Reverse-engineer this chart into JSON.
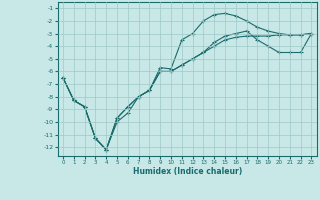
{
  "title": "",
  "xlabel": "Humidex (Indice chaleur)",
  "ylabel": "",
  "bg_color": "#c8e8e8",
  "grid_color": "#a0c8c8",
  "line_color": "#1a6b6b",
  "xlim": [
    -0.5,
    23.5
  ],
  "ylim": [
    -12.7,
    -0.5
  ],
  "xticks": [
    0,
    1,
    2,
    3,
    4,
    5,
    6,
    7,
    8,
    9,
    10,
    11,
    12,
    13,
    14,
    15,
    16,
    17,
    18,
    19,
    20,
    21,
    22,
    23
  ],
  "yticks": [
    -1,
    -2,
    -3,
    -4,
    -5,
    -6,
    -7,
    -8,
    -9,
    -10,
    -11,
    -12
  ],
  "series": [
    {
      "x": [
        0,
        1,
        2,
        3,
        4,
        5,
        6,
        7,
        8,
        9,
        10,
        11,
        12,
        13,
        14,
        15,
        16,
        17,
        18,
        19,
        20,
        21,
        22,
        23
      ],
      "y": [
        -6.5,
        -8.3,
        -8.8,
        -11.3,
        -12.2,
        -10.0,
        -9.3,
        -8.0,
        -7.5,
        -5.7,
        -5.8,
        -3.5,
        -3.0,
        -2.0,
        -1.5,
        -1.4,
        -1.6,
        -2.0,
        -2.5,
        -2.8,
        -3.0,
        -3.1,
        -3.1,
        -3.0
      ]
    },
    {
      "x": [
        0,
        1,
        2,
        3,
        4,
        5,
        6,
        7,
        8,
        9,
        10,
        11,
        12,
        13,
        14,
        15,
        16,
        17,
        18,
        19,
        20,
        21,
        22,
        23
      ],
      "y": [
        -6.5,
        -8.3,
        -8.8,
        -11.3,
        -12.2,
        -9.7,
        -8.8,
        -8.0,
        -7.5,
        -6.0,
        -6.0,
        -5.5,
        -5.0,
        -4.5,
        -4.0,
        -3.5,
        -3.3,
        -3.2,
        -3.2,
        -3.2,
        -3.1,
        -3.1,
        -3.1,
        -3.0
      ]
    },
    {
      "x": [
        0,
        1,
        2,
        3,
        4,
        5,
        6,
        7,
        8,
        9,
        10,
        11,
        12,
        13,
        14,
        15,
        16,
        17,
        18,
        19,
        20,
        21,
        22,
        23
      ],
      "y": [
        -6.5,
        -8.3,
        -8.8,
        -11.3,
        -12.2,
        -9.7,
        -8.8,
        -8.0,
        -7.5,
        -6.0,
        -6.0,
        -5.5,
        -5.0,
        -4.5,
        -3.7,
        -3.2,
        -3.0,
        -2.8,
        -3.5,
        -4.0,
        -4.5,
        -4.5,
        -4.5,
        -3.0
      ]
    }
  ]
}
